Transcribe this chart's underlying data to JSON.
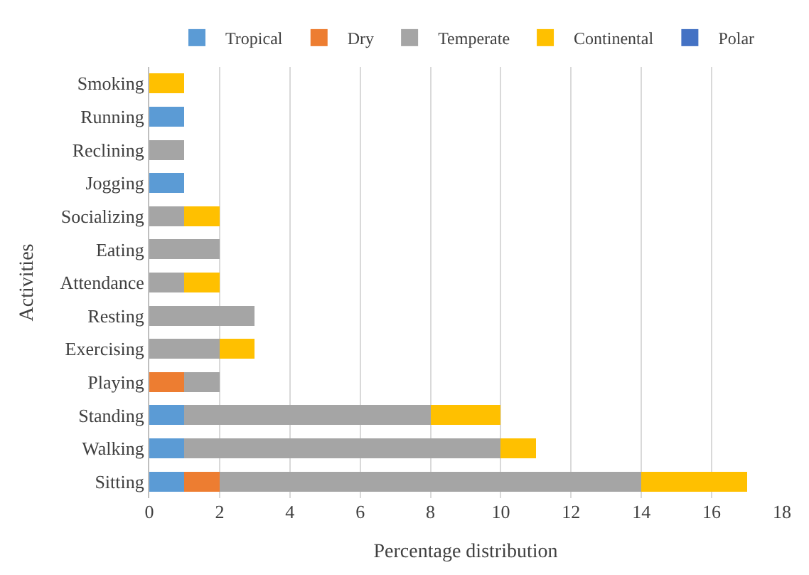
{
  "chart_data": {
    "type": "bar",
    "orientation": "horizontal",
    "stacked": true,
    "xlabel": "Percentage distribution",
    "ylabel": "Activities",
    "categories": [
      "Smoking",
      "Running",
      "Reclining",
      "Jogging",
      "Socializing",
      "Eating",
      "Attendance",
      "Resting",
      "Exercising",
      "Playing",
      "Standing",
      "Walking",
      "Sitting"
    ],
    "series": [
      {
        "name": "Tropical",
        "color": "#5b9bd5",
        "values": [
          0,
          1,
          0,
          1,
          0,
          0,
          0,
          0,
          0,
          0,
          1,
          1,
          1
        ]
      },
      {
        "name": "Dry",
        "color": "#ed7d31",
        "values": [
          0,
          0,
          0,
          0,
          0,
          0,
          0,
          0,
          0,
          1,
          0,
          0,
          1
        ]
      },
      {
        "name": "Temperate",
        "color": "#a5a5a5",
        "values": [
          0,
          0,
          1,
          0,
          1,
          2,
          1,
          3,
          2,
          1,
          7,
          9,
          12
        ]
      },
      {
        "name": "Continental",
        "color": "#ffc000",
        "values": [
          1,
          0,
          0,
          0,
          1,
          0,
          1,
          0,
          1,
          0,
          2,
          1,
          3
        ]
      },
      {
        "name": "Polar",
        "color": "#4472c4",
        "values": [
          0,
          0,
          0,
          0,
          0,
          0,
          0,
          0,
          0,
          0,
          0,
          0,
          0
        ]
      }
    ],
    "xlim": [
      0,
      18
    ],
    "xticks": [
      0,
      2,
      4,
      6,
      8,
      10,
      12,
      14,
      16,
      18
    ],
    "grid": "x",
    "legend": "top"
  }
}
